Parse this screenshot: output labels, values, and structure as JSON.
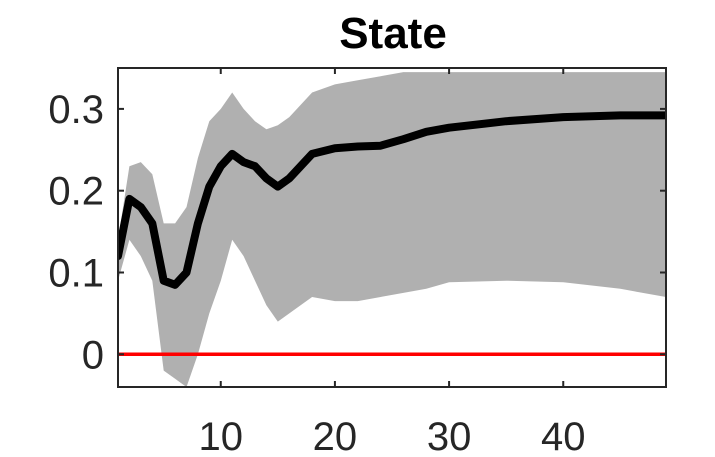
{
  "chart_data": {
    "type": "line",
    "title": "State",
    "xlabel": "",
    "ylabel": "",
    "xlim": [
      1,
      49
    ],
    "ylim": [
      -0.04,
      0.35
    ],
    "x_ticks": [
      10,
      20,
      30,
      40
    ],
    "y_ticks": [
      0,
      0.1,
      0.2,
      0.3
    ],
    "x_tick_labels": [
      "10",
      "20",
      "30",
      "40"
    ],
    "y_tick_labels": [
      "0",
      "0.1",
      "0.2",
      "0.3"
    ],
    "grid": false,
    "series": [
      {
        "role": "estimate",
        "color": "#000000",
        "x": [
          1,
          2,
          3,
          4,
          5,
          6,
          7,
          8,
          9,
          10,
          11,
          12,
          13,
          14,
          15,
          16,
          18,
          20,
          22,
          24,
          26,
          28,
          30,
          35,
          40,
          45,
          49
        ],
        "values": [
          0.12,
          0.19,
          0.18,
          0.16,
          0.09,
          0.085,
          0.1,
          0.16,
          0.205,
          0.23,
          0.245,
          0.235,
          0.23,
          0.215,
          0.205,
          0.215,
          0.245,
          0.252,
          0.254,
          0.255,
          0.263,
          0.272,
          0.277,
          0.285,
          0.29,
          0.292,
          0.292
        ]
      },
      {
        "role": "upper_band",
        "color": "#b0b0b0",
        "x": [
          1,
          2,
          3,
          4,
          5,
          6,
          7,
          8,
          9,
          10,
          11,
          12,
          13,
          14,
          15,
          16,
          18,
          20,
          22,
          24,
          26,
          28,
          30,
          35,
          40,
          45,
          49
        ],
        "values": [
          0.14,
          0.23,
          0.235,
          0.22,
          0.16,
          0.16,
          0.18,
          0.24,
          0.285,
          0.3,
          0.32,
          0.3,
          0.285,
          0.275,
          0.28,
          0.29,
          0.32,
          0.33,
          0.335,
          0.34,
          0.345,
          0.345,
          0.345,
          0.345,
          0.345,
          0.345,
          0.345
        ]
      },
      {
        "role": "lower_band",
        "color": "#b0b0b0",
        "x": [
          1,
          2,
          3,
          4,
          5,
          6,
          7,
          8,
          9,
          10,
          11,
          12,
          13,
          14,
          15,
          16,
          18,
          20,
          22,
          24,
          26,
          28,
          30,
          35,
          40,
          45,
          49
        ],
        "values": [
          0.09,
          0.14,
          0.12,
          0.09,
          -0.02,
          -0.03,
          -0.04,
          0.0,
          0.05,
          0.09,
          0.14,
          0.12,
          0.09,
          0.06,
          0.04,
          0.05,
          0.07,
          0.065,
          0.065,
          0.07,
          0.075,
          0.08,
          0.088,
          0.09,
          0.088,
          0.08,
          0.07
        ]
      },
      {
        "role": "zero_line",
        "color": "#ff0000",
        "x": [
          1,
          49
        ],
        "values": [
          0,
          0
        ]
      }
    ]
  }
}
